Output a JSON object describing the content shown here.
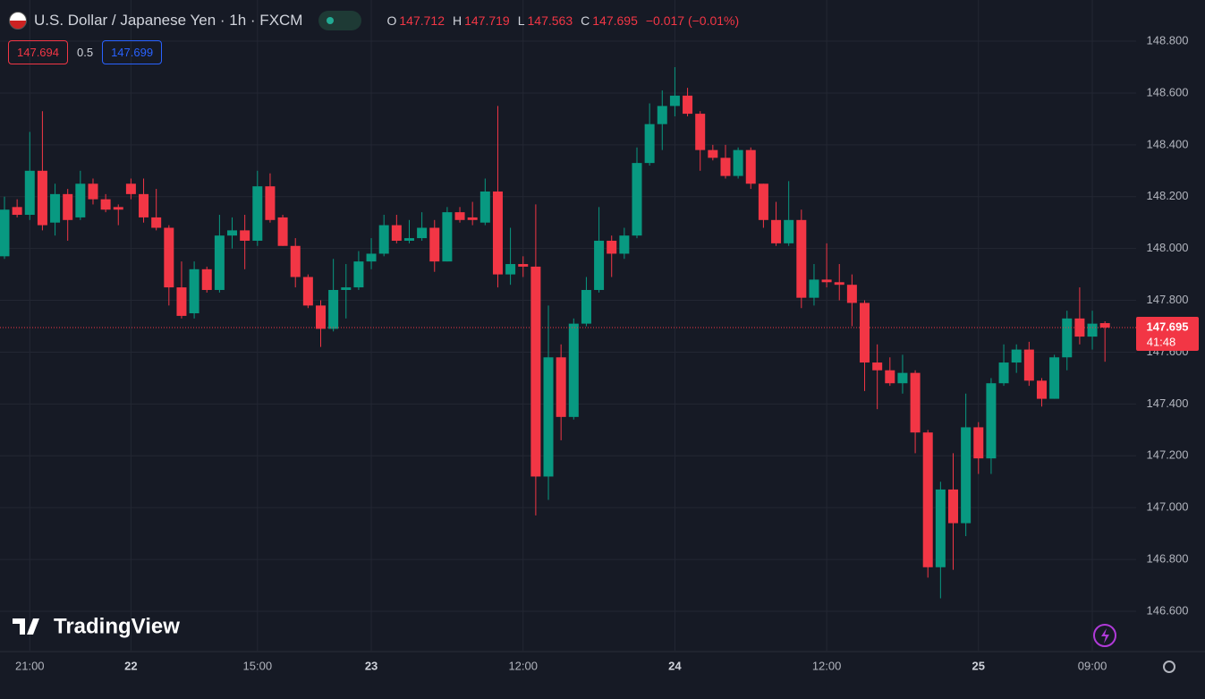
{
  "header": {
    "title": "U.S. Dollar / Japanese Yen · 1h · FXCM",
    "ohlc_labels": [
      "O",
      "H",
      "L",
      "C"
    ],
    "change": "−0.017 (−0.01%)",
    "bid": "147.694",
    "spread": "0.5",
    "ask": "147.699"
  },
  "countdown": "41:48",
  "logo": "TradingView",
  "chart_data": {
    "type": "candlestick",
    "up_color": "#089981",
    "down_color": "#f23645",
    "grid": true,
    "ylim": [
      146.448,
      148.959
    ],
    "yticks": [
      {
        "value": 146.6,
        "label": "146.600"
      },
      {
        "value": 146.8,
        "label": "146.800"
      },
      {
        "value": 147.0,
        "label": "147.000"
      },
      {
        "value": 147.2,
        "label": "147.200"
      },
      {
        "value": 147.4,
        "label": "147.400"
      },
      {
        "value": 147.6,
        "label": "147.600"
      },
      {
        "value": 147.8,
        "label": "147.800"
      },
      {
        "value": 148.0,
        "label": "148.000"
      },
      {
        "value": 148.2,
        "label": "148.200"
      },
      {
        "value": 148.4,
        "label": "148.400"
      },
      {
        "value": 148.6,
        "label": "148.600"
      },
      {
        "value": 148.8,
        "label": "148.800"
      }
    ],
    "categories": [
      null,
      null,
      "21:00",
      null,
      null,
      null,
      null,
      null,
      null,
      null,
      "22",
      null,
      null,
      null,
      null,
      null,
      null,
      null,
      null,
      null,
      "15:00",
      null,
      null,
      null,
      null,
      null,
      null,
      null,
      null,
      "23",
      null,
      null,
      null,
      null,
      null,
      null,
      null,
      null,
      null,
      null,
      null,
      "12:00",
      null,
      null,
      null,
      null,
      null,
      null,
      null,
      null,
      null,
      null,
      null,
      "24",
      null,
      null,
      null,
      null,
      null,
      null,
      null,
      null,
      null,
      null,
      null,
      "12:00",
      null,
      null,
      null,
      null,
      null,
      null,
      null,
      null,
      null,
      null,
      null,
      "25",
      null,
      null,
      null,
      null,
      null,
      null,
      null,
      null,
      "09:00",
      null
    ],
    "open": [
      147.97,
      148.16,
      148.13,
      148.3,
      148.1,
      148.21,
      148.12,
      148.25,
      148.19,
      148.16,
      148.25,
      148.21,
      148.12,
      148.08,
      147.85,
      147.75,
      147.92,
      147.84,
      148.05,
      148.07,
      148.03,
      148.24,
      148.12,
      148.01,
      147.89,
      147.78,
      147.69,
      147.84,
      147.85,
      147.95,
      147.98,
      148.09,
      148.03,
      148.04,
      148.08,
      147.95,
      148.14,
      148.12,
      148.1,
      148.22,
      147.9,
      147.94,
      147.93,
      147.12,
      147.58,
      147.35,
      147.71,
      147.84,
      148.03,
      147.98,
      148.05,
      148.33,
      148.48,
      148.55,
      148.59,
      148.52,
      148.38,
      148.35,
      148.28,
      148.38,
      148.25,
      148.11,
      148.02,
      148.11,
      147.81,
      147.88,
      147.87,
      147.86,
      147.79,
      147.56,
      147.53,
      147.48,
      147.52,
      147.29,
      146.77,
      147.07,
      146.94,
      147.31,
      147.19,
      147.48,
      147.56,
      147.61,
      147.49,
      147.42,
      147.58,
      147.73,
      147.66,
      147.712
    ],
    "high": [
      148.2,
      148.19,
      148.45,
      148.53,
      148.25,
      148.23,
      148.3,
      148.27,
      148.21,
      148.17,
      148.27,
      148.27,
      148.23,
      148.09,
      147.95,
      147.95,
      147.93,
      148.13,
      148.12,
      148.13,
      148.3,
      148.29,
      148.13,
      148.04,
      147.9,
      147.8,
      147.96,
      147.94,
      147.99,
      148.04,
      148.13,
      148.13,
      148.11,
      148.14,
      148.11,
      148.16,
      148.16,
      148.18,
      148.27,
      148.55,
      148.08,
      147.97,
      148.17,
      147.78,
      147.63,
      147.73,
      147.89,
      148.16,
      148.05,
      148.08,
      148.39,
      148.56,
      148.61,
      148.7,
      148.62,
      148.53,
      148.4,
      148.4,
      148.39,
      148.39,
      148.25,
      148.18,
      148.26,
      148.15,
      147.94,
      148.02,
      147.94,
      147.9,
      147.8,
      147.63,
      147.58,
      147.59,
      147.53,
      147.3,
      147.1,
      147.21,
      147.44,
      147.33,
      147.5,
      147.63,
      147.63,
      147.64,
      147.5,
      147.59,
      147.76,
      147.85,
      147.76,
      147.719
    ],
    "low": [
      147.96,
      148.12,
      148.11,
      148.07,
      148.05,
      148.03,
      148.11,
      148.17,
      148.14,
      148.09,
      148.19,
      148.1,
      148.07,
      147.78,
      147.73,
      147.73,
      147.83,
      147.83,
      148.0,
      147.92,
      148.01,
      148.1,
      148.01,
      147.85,
      147.77,
      147.62,
      147.68,
      147.73,
      147.84,
      147.92,
      147.97,
      148.02,
      148.02,
      148.03,
      147.91,
      147.95,
      148.1,
      148.09,
      148.09,
      147.85,
      147.86,
      147.89,
      146.97,
      147.03,
      147.26,
      147.34,
      147.7,
      147.83,
      147.89,
      147.96,
      148.04,
      148.32,
      148.38,
      148.51,
      148.51,
      148.3,
      148.34,
      148.27,
      148.27,
      148.23,
      148.08,
      148.01,
      148.01,
      147.77,
      147.78,
      147.85,
      147.8,
      147.7,
      147.45,
      147.38,
      147.47,
      147.44,
      147.21,
      146.73,
      146.65,
      146.76,
      146.89,
      147.13,
      147.13,
      147.47,
      147.52,
      147.47,
      147.39,
      147.42,
      147.53,
      147.63,
      147.61,
      147.563
    ],
    "close": [
      148.15,
      148.13,
      148.3,
      148.09,
      148.21,
      148.11,
      148.25,
      148.19,
      148.15,
      148.15,
      148.21,
      148.12,
      148.08,
      147.85,
      147.74,
      147.92,
      147.84,
      148.05,
      148.07,
      148.03,
      148.24,
      148.11,
      148.01,
      147.89,
      147.78,
      147.69,
      147.84,
      147.85,
      147.95,
      147.98,
      148.09,
      148.03,
      148.04,
      148.08,
      147.95,
      148.14,
      148.11,
      148.11,
      148.22,
      147.9,
      147.94,
      147.93,
      147.12,
      147.58,
      147.35,
      147.71,
      147.84,
      148.03,
      147.98,
      148.05,
      148.33,
      148.48,
      148.55,
      148.59,
      148.52,
      148.38,
      148.35,
      148.28,
      148.38,
      148.25,
      148.11,
      148.02,
      148.11,
      147.81,
      147.88,
      147.87,
      147.86,
      147.79,
      147.56,
      147.53,
      147.48,
      147.52,
      147.29,
      146.77,
      147.07,
      146.94,
      147.31,
      147.19,
      147.48,
      147.56,
      147.61,
      147.49,
      147.42,
      147.58,
      147.73,
      147.66,
      147.71,
      147.695
    ]
  }
}
